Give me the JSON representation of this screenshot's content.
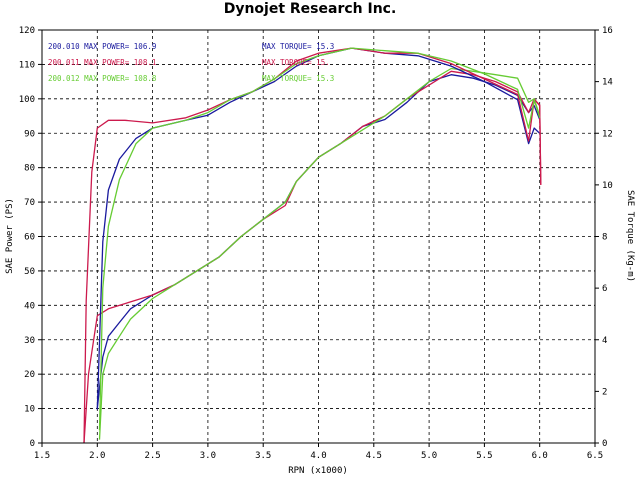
{
  "chart_data": {
    "type": "line",
    "title": "Dynojet Research Inc.",
    "xlabel": "RPN (x1000)",
    "ylabel_left": "SAE Power (PS)",
    "ylabel_right": "SAE Torque (Kg-m)",
    "xlim": [
      1.5,
      6.5
    ],
    "ylim_left": [
      0,
      120
    ],
    "ylim_right": [
      0,
      16
    ],
    "x_ticks": [
      "1.5",
      "2.0",
      "2.5",
      "3.0",
      "3.5",
      "4.0",
      "4.5",
      "5.0",
      "5.5",
      "6.0",
      "6.5"
    ],
    "y_ticks_left": [
      "0",
      "10",
      "20",
      "30",
      "40",
      "50",
      "60",
      "70",
      "80",
      "90",
      "100",
      "110",
      "120"
    ],
    "y_ticks_right": [
      "0",
      "2",
      "4",
      "6",
      "8",
      "10",
      "12",
      "14",
      "16"
    ],
    "grid": true,
    "legend_power": [
      {
        "run": "200.010",
        "label": "MAX POWER= 106.9",
        "color": "#1a1a9e"
      },
      {
        "run": "200.011",
        "label": "MAX POWER= 108.1",
        "color": "#cc1a4d"
      },
      {
        "run": "200.012",
        "label": "MAX POWER= 108.8",
        "color": "#66cc33"
      }
    ],
    "legend_torque": [
      {
        "label": "MAX TORQUE= 15.3",
        "color": "#1a1a9e"
      },
      {
        "label": "MAX TORQUE= 15.",
        "color": "#cc1a4d"
      },
      {
        "label": "MAX TORQUE= 15.3",
        "color": "#66cc33"
      }
    ],
    "series": [
      {
        "run": "200.010",
        "quantity": "power",
        "axis": "left",
        "color": "#1a1a9e",
        "points": [
          [
            2.0,
            10
          ],
          [
            2.05,
            25
          ],
          [
            2.1,
            31
          ],
          [
            2.2,
            35
          ],
          [
            2.3,
            39
          ],
          [
            2.5,
            43
          ],
          [
            2.7,
            46
          ],
          [
            2.9,
            50
          ],
          [
            3.1,
            54
          ],
          [
            3.3,
            60
          ],
          [
            3.5,
            65
          ],
          [
            3.7,
            70
          ],
          [
            3.8,
            76
          ],
          [
            4.0,
            83
          ],
          [
            4.2,
            87
          ],
          [
            4.4,
            92
          ],
          [
            4.6,
            94
          ],
          [
            4.8,
            99
          ],
          [
            5.0,
            105
          ],
          [
            5.2,
            107
          ],
          [
            5.4,
            106
          ],
          [
            5.6,
            104
          ],
          [
            5.8,
            101
          ],
          [
            5.9,
            96
          ],
          [
            5.95,
            98
          ],
          [
            6.0,
            94
          ]
        ]
      },
      {
        "run": "200.011",
        "quantity": "power",
        "axis": "left",
        "color": "#cc1a4d",
        "points": [
          [
            1.88,
            0
          ],
          [
            1.92,
            20
          ],
          [
            2.0,
            37
          ],
          [
            2.1,
            39
          ],
          [
            2.3,
            41
          ],
          [
            2.5,
            43
          ],
          [
            2.7,
            46
          ],
          [
            2.9,
            50
          ],
          [
            3.1,
            54
          ],
          [
            3.3,
            60
          ],
          [
            3.5,
            65
          ],
          [
            3.7,
            69
          ],
          [
            3.8,
            76
          ],
          [
            4.0,
            83
          ],
          [
            4.2,
            87
          ],
          [
            4.4,
            92
          ],
          [
            4.6,
            95
          ],
          [
            4.8,
            100
          ],
          [
            5.0,
            104
          ],
          [
            5.2,
            108
          ],
          [
            5.4,
            107
          ],
          [
            5.6,
            105
          ],
          [
            5.8,
            102
          ],
          [
            5.9,
            96
          ],
          [
            5.95,
            100
          ],
          [
            6.0,
            98
          ],
          [
            6.01,
            75
          ]
        ]
      },
      {
        "run": "200.012",
        "quantity": "power",
        "axis": "left",
        "color": "#66cc33",
        "points": [
          [
            2.02,
            1
          ],
          [
            2.05,
            20
          ],
          [
            2.1,
            26
          ],
          [
            2.2,
            31
          ],
          [
            2.3,
            36
          ],
          [
            2.5,
            42
          ],
          [
            2.7,
            46
          ],
          [
            2.9,
            50
          ],
          [
            3.1,
            54
          ],
          [
            3.3,
            60
          ],
          [
            3.5,
            65
          ],
          [
            3.7,
            70
          ],
          [
            3.8,
            76
          ],
          [
            4.0,
            83
          ],
          [
            4.2,
            87
          ],
          [
            4.4,
            91
          ],
          [
            4.6,
            95
          ],
          [
            4.8,
            100
          ],
          [
            5.0,
            105
          ],
          [
            5.2,
            108.8
          ],
          [
            5.4,
            108
          ],
          [
            5.6,
            107
          ],
          [
            5.8,
            106
          ],
          [
            5.9,
            99
          ],
          [
            5.95,
            100
          ],
          [
            6.0,
            95
          ]
        ]
      },
      {
        "run": "200.010",
        "quantity": "torque",
        "axis": "right",
        "color": "#1a1a9e",
        "points": [
          [
            2.0,
            1.3
          ],
          [
            2.05,
            7.8
          ],
          [
            2.1,
            9.8
          ],
          [
            2.2,
            11.0
          ],
          [
            2.35,
            11.8
          ],
          [
            2.5,
            12.2
          ],
          [
            2.8,
            12.5
          ],
          [
            3.0,
            12.7
          ],
          [
            3.2,
            13.2
          ],
          [
            3.4,
            13.6
          ],
          [
            3.6,
            14.0
          ],
          [
            3.8,
            14.6
          ],
          [
            4.0,
            15.0
          ],
          [
            4.3,
            15.3
          ],
          [
            4.6,
            15.1
          ],
          [
            4.9,
            15.0
          ],
          [
            5.2,
            14.6
          ],
          [
            5.5,
            14.0
          ],
          [
            5.8,
            13.3
          ],
          [
            5.9,
            11.6
          ],
          [
            5.95,
            12.2
          ],
          [
            6.0,
            12.0
          ]
        ]
      },
      {
        "run": "200.011",
        "quantity": "torque",
        "axis": "right",
        "color": "#cc1a4d",
        "points": [
          [
            1.88,
            0
          ],
          [
            1.9,
            5.5
          ],
          [
            1.95,
            10.5
          ],
          [
            2.0,
            12.2
          ],
          [
            2.1,
            12.5
          ],
          [
            2.25,
            12.5
          ],
          [
            2.5,
            12.4
          ],
          [
            2.8,
            12.6
          ],
          [
            3.0,
            12.9
          ],
          [
            3.2,
            13.3
          ],
          [
            3.4,
            13.6
          ],
          [
            3.6,
            14.1
          ],
          [
            3.8,
            14.8
          ],
          [
            4.0,
            15.1
          ],
          [
            4.3,
            15.3
          ],
          [
            4.6,
            15.1
          ],
          [
            4.9,
            15.1
          ],
          [
            5.2,
            14.7
          ],
          [
            5.5,
            14.1
          ],
          [
            5.8,
            13.5
          ],
          [
            5.9,
            11.7
          ],
          [
            5.95,
            13.3
          ],
          [
            6.0,
            13.1
          ],
          [
            6.01,
            10.0
          ]
        ]
      },
      {
        "run": "200.012",
        "quantity": "torque",
        "axis": "right",
        "color": "#66cc33",
        "points": [
          [
            2.02,
            0.5
          ],
          [
            2.05,
            6.0
          ],
          [
            2.1,
            8.4
          ],
          [
            2.2,
            10.2
          ],
          [
            2.35,
            11.6
          ],
          [
            2.5,
            12.2
          ],
          [
            2.8,
            12.5
          ],
          [
            3.0,
            12.8
          ],
          [
            3.2,
            13.3
          ],
          [
            3.4,
            13.6
          ],
          [
            3.6,
            14.1
          ],
          [
            3.8,
            14.7
          ],
          [
            4.0,
            15.0
          ],
          [
            4.3,
            15.3
          ],
          [
            4.6,
            15.2
          ],
          [
            4.9,
            15.1
          ],
          [
            5.2,
            14.8
          ],
          [
            5.5,
            14.3
          ],
          [
            5.8,
            13.7
          ],
          [
            5.9,
            12.2
          ],
          [
            5.95,
            13.3
          ],
          [
            6.0,
            12.6
          ]
        ]
      }
    ]
  }
}
